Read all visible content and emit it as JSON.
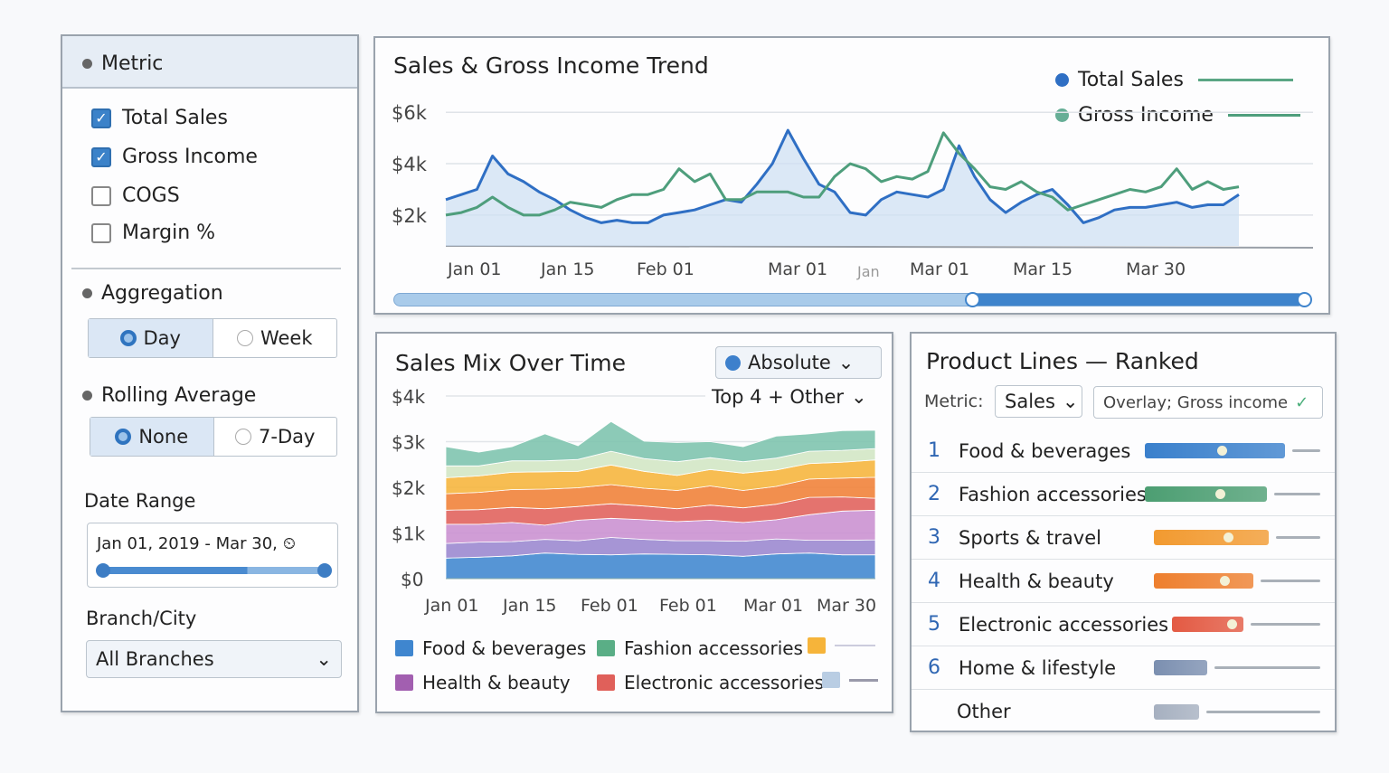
{
  "sidebar": {
    "metric": {
      "title": "Metric",
      "items": [
        {
          "label": "Total Sales",
          "checked": true
        },
        {
          "label": "Gross Income",
          "checked": true
        },
        {
          "label": "COGS",
          "checked": false
        },
        {
          "label": "Margin %",
          "checked": false
        }
      ]
    },
    "aggregation": {
      "title": "Aggregation",
      "options": [
        "Day",
        "Week"
      ],
      "selected": "Day"
    },
    "rolling": {
      "title": "Rolling Average",
      "options": [
        "None",
        "7-Day"
      ],
      "selected": "None"
    },
    "date_range": {
      "title": "Date Range",
      "value": "Jan 01, 2019 - Mar 30,",
      "icon": "clock-icon",
      "slider_fraction": [
        0,
        1
      ]
    },
    "branch": {
      "title": "Branch/City",
      "value": "All Branches"
    }
  },
  "trend": {
    "title": "Sales & Gross Income Trend",
    "legend": [
      {
        "label": "Total Sales",
        "color": "#2f6fc4"
      },
      {
        "label": "Gross Income",
        "color": "#4e9e7c"
      }
    ],
    "scroll_range_fraction": [
      0.6,
      1.0
    ]
  },
  "mix": {
    "title": "Sales Mix Over Time",
    "mode": "Absolute",
    "grouping": "Top 4 + Other",
    "legend": [
      {
        "label": "Food & beverages",
        "color": "#3f86cf"
      },
      {
        "label": "Fashion accessories",
        "color": "#5aae86"
      },
      {
        "label": "",
        "color": "#f6b43a"
      },
      {
        "label": "Health & beauty",
        "color": "#a25fb0"
      },
      {
        "label": "Electronic accessories",
        "color": "#e0605a"
      },
      {
        "label": "",
        "color": "#b9cde3"
      }
    ]
  },
  "ranked": {
    "title": "Product Lines — Ranked",
    "metric_label": "Metric:",
    "metric_value": "Sales",
    "overlay_label": "Overlay; Gross income",
    "rows": [
      {
        "rank": "1",
        "label": "Food & beverages",
        "value": 1.0,
        "overlay": 0.72,
        "color": "#3a80cc"
      },
      {
        "rank": "2",
        "label": "Fashion accessories",
        "value": 0.87,
        "overlay": 0.7,
        "color": "#4c9e72"
      },
      {
        "rank": "3",
        "label": "Sports & travel",
        "value": 0.82,
        "overlay": 0.69,
        "color": "#f29a30"
      },
      {
        "rank": "4",
        "label": "Health & beauty",
        "value": 0.71,
        "overlay": 0.65,
        "color": "#ee7f2e"
      },
      {
        "rank": "5",
        "label": "Electronic accessories",
        "value": 0.51,
        "overlay": 0.55,
        "color": "#e35a43"
      },
      {
        "rank": "6",
        "label": "Home & lifestyle",
        "value": 0.38,
        "overlay": null,
        "color": "#7b8fb0"
      },
      {
        "rank": "",
        "label": "Other",
        "value": 0.32,
        "overlay": null,
        "color": "#a6b0c0"
      }
    ]
  },
  "chart_data": [
    {
      "type": "line",
      "title": "Sales & Gross Income Trend",
      "xlabel": "",
      "ylabel": "",
      "x_tick_labels": [
        "Jan 01",
        "Jan 15",
        "Feb 01",
        "Mar 01",
        "Jan",
        "Mar 01",
        "Mar 15",
        "Mar 30"
      ],
      "y_tick_labels": [
        "$2k",
        "$4k",
        "$6k"
      ],
      "yticks": [
        2000,
        4000,
        6000
      ],
      "ylim": [
        800,
        6500
      ],
      "grid": true,
      "legend": "top-right",
      "series": [
        {
          "name": "Total Sales",
          "color": "#2f6fc4",
          "fill": true,
          "values": [
            2600,
            2800,
            3000,
            4300,
            3600,
            3300,
            2900,
            2600,
            2200,
            1900,
            1700,
            1800,
            1700,
            1700,
            2000,
            2100,
            2200,
            2400,
            2600,
            2500,
            3200,
            4000,
            5300,
            4200,
            3200,
            2900,
            2100,
            2000,
            2600,
            2900,
            2800,
            2700,
            3000,
            4700,
            3500,
            2600,
            2100,
            2500,
            2800,
            3000,
            2400,
            1700,
            1900,
            2200,
            2300,
            2300,
            2400,
            2500,
            2300,
            2400,
            2400,
            2800
          ]
        },
        {
          "name": "Gross Income",
          "color": "#4e9e7c",
          "fill": false,
          "values": [
            2000,
            2100,
            2300,
            2700,
            2300,
            2000,
            2000,
            2200,
            2500,
            2400,
            2300,
            2600,
            2800,
            2800,
            3000,
            3800,
            3300,
            3600,
            2600,
            2600,
            2900,
            2900,
            2900,
            2700,
            2700,
            3500,
            4000,
            3800,
            3300,
            3500,
            3400,
            3700,
            5200,
            4400,
            3800,
            3100,
            3000,
            3300,
            2900,
            2700,
            2200,
            2400,
            2600,
            2800,
            3000,
            2900,
            3100,
            3800,
            3000,
            3300,
            3000,
            3100
          ]
        }
      ]
    },
    {
      "type": "area",
      "stacked": true,
      "title": "Sales Mix Over Time",
      "xlabel": "",
      "ylabel": "",
      "x_tick_labels": [
        "Jan 01",
        "Jan 15",
        "Feb 01",
        "Feb 01",
        "Mar 01",
        "Mar 30"
      ],
      "y_tick_labels": [
        "$0",
        "$1k",
        "$2k",
        "$3k",
        "$4k"
      ],
      "yticks": [
        0,
        1000,
        2000,
        3000,
        4000
      ],
      "ylim": [
        0,
        4000
      ],
      "grid": true,
      "legend": "bottom",
      "series": [
        {
          "name": "Food & beverages",
          "color": "#3f86cf",
          "values": [
            450,
            470,
            500,
            560,
            530,
            520,
            540,
            530,
            520,
            490,
            540,
            560,
            520,
            520
          ]
        },
        {
          "name": "",
          "color": "#9a86cf",
          "values": [
            320,
            330,
            310,
            300,
            300,
            380,
            320,
            300,
            310,
            330,
            330,
            280,
            320,
            330
          ]
        },
        {
          "name": "Health & beauty",
          "color": "#c98fd0",
          "values": [
            420,
            390,
            420,
            310,
            450,
            420,
            430,
            420,
            450,
            410,
            420,
            560,
            640,
            650
          ]
        },
        {
          "name": "Electronic accessories",
          "color": "#e0605a",
          "values": [
            310,
            320,
            330,
            360,
            300,
            320,
            300,
            280,
            330,
            320,
            340,
            380,
            310,
            260
          ]
        },
        {
          "name": "",
          "color": "#f07f35",
          "values": [
            360,
            380,
            390,
            430,
            410,
            420,
            390,
            400,
            420,
            380,
            390,
            400,
            410,
            460
          ]
        },
        {
          "name": "",
          "color": "#f6b43a",
          "values": [
            350,
            360,
            380,
            380,
            360,
            430,
            370,
            330,
            360,
            380,
            360,
            340,
            350,
            380
          ]
        },
        {
          "name": "",
          "color": "#d2e6c4",
          "values": [
            260,
            220,
            250,
            240,
            260,
            300,
            280,
            300,
            260,
            250,
            260,
            270,
            260,
            250
          ]
        },
        {
          "name": "Fashion accessories",
          "color": "#7cc3ad",
          "values": [
            420,
            300,
            310,
            590,
            300,
            650,
            380,
            420,
            350,
            330,
            480,
            380,
            430,
            400
          ]
        }
      ]
    }
  ]
}
